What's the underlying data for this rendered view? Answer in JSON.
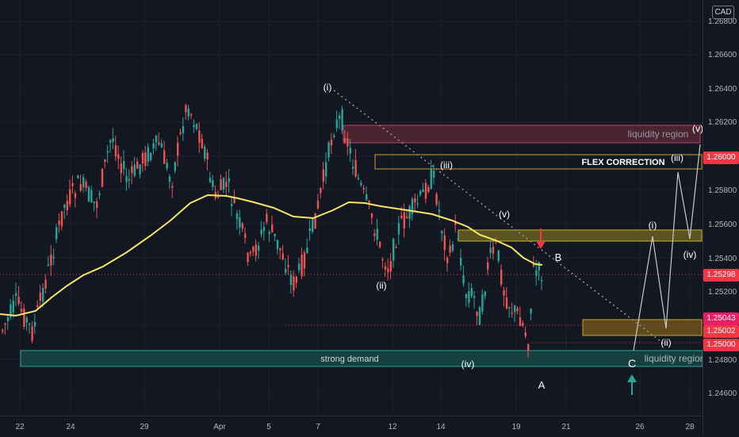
{
  "currency": "CAD",
  "price_ticks": [
    "1.26800",
    "1.26600",
    "1.26400",
    "1.26200",
    "1.25800",
    "1.25600",
    "1.25400",
    "1.25200",
    "1.24800",
    "1.24600"
  ],
  "date_ticks": [
    "22",
    "24",
    "29",
    "Apr",
    "5",
    "7",
    "12",
    "14",
    "19",
    "21",
    "26",
    "28"
  ],
  "price_badges": [
    {
      "label": "1.26000",
      "color": "#f23645"
    },
    {
      "label": "1.25298",
      "color": "#f23645"
    },
    {
      "label": "1.25043",
      "color": "#e91e63"
    },
    {
      "label": "1.25002",
      "color": "#f23645"
    },
    {
      "label": "1.25000",
      "color": "#f23645"
    }
  ],
  "annotations": {
    "liquidity_top": "liquidity region",
    "liquidity_bottom": "liquidity region",
    "flex": "FLEX CORRECTION",
    "demand": "strong demand",
    "wave_i_top": "(i)",
    "wave_ii_low": "(ii)",
    "wave_iii_mid": "(iii)",
    "wave_iv_low": "(iv)",
    "wave_v_mid": "(v)",
    "label_A": "A",
    "label_B": "B",
    "label_C": "C",
    "proj_i": "(i)",
    "proj_ii": "(ii)",
    "proj_iii": "(iii)",
    "proj_iv": "(iv)",
    "proj_v": "(v)"
  },
  "colors": {
    "up": "#26a69a",
    "down": "#ef5350",
    "ma": "#f5e663",
    "bg": "#131722"
  }
}
